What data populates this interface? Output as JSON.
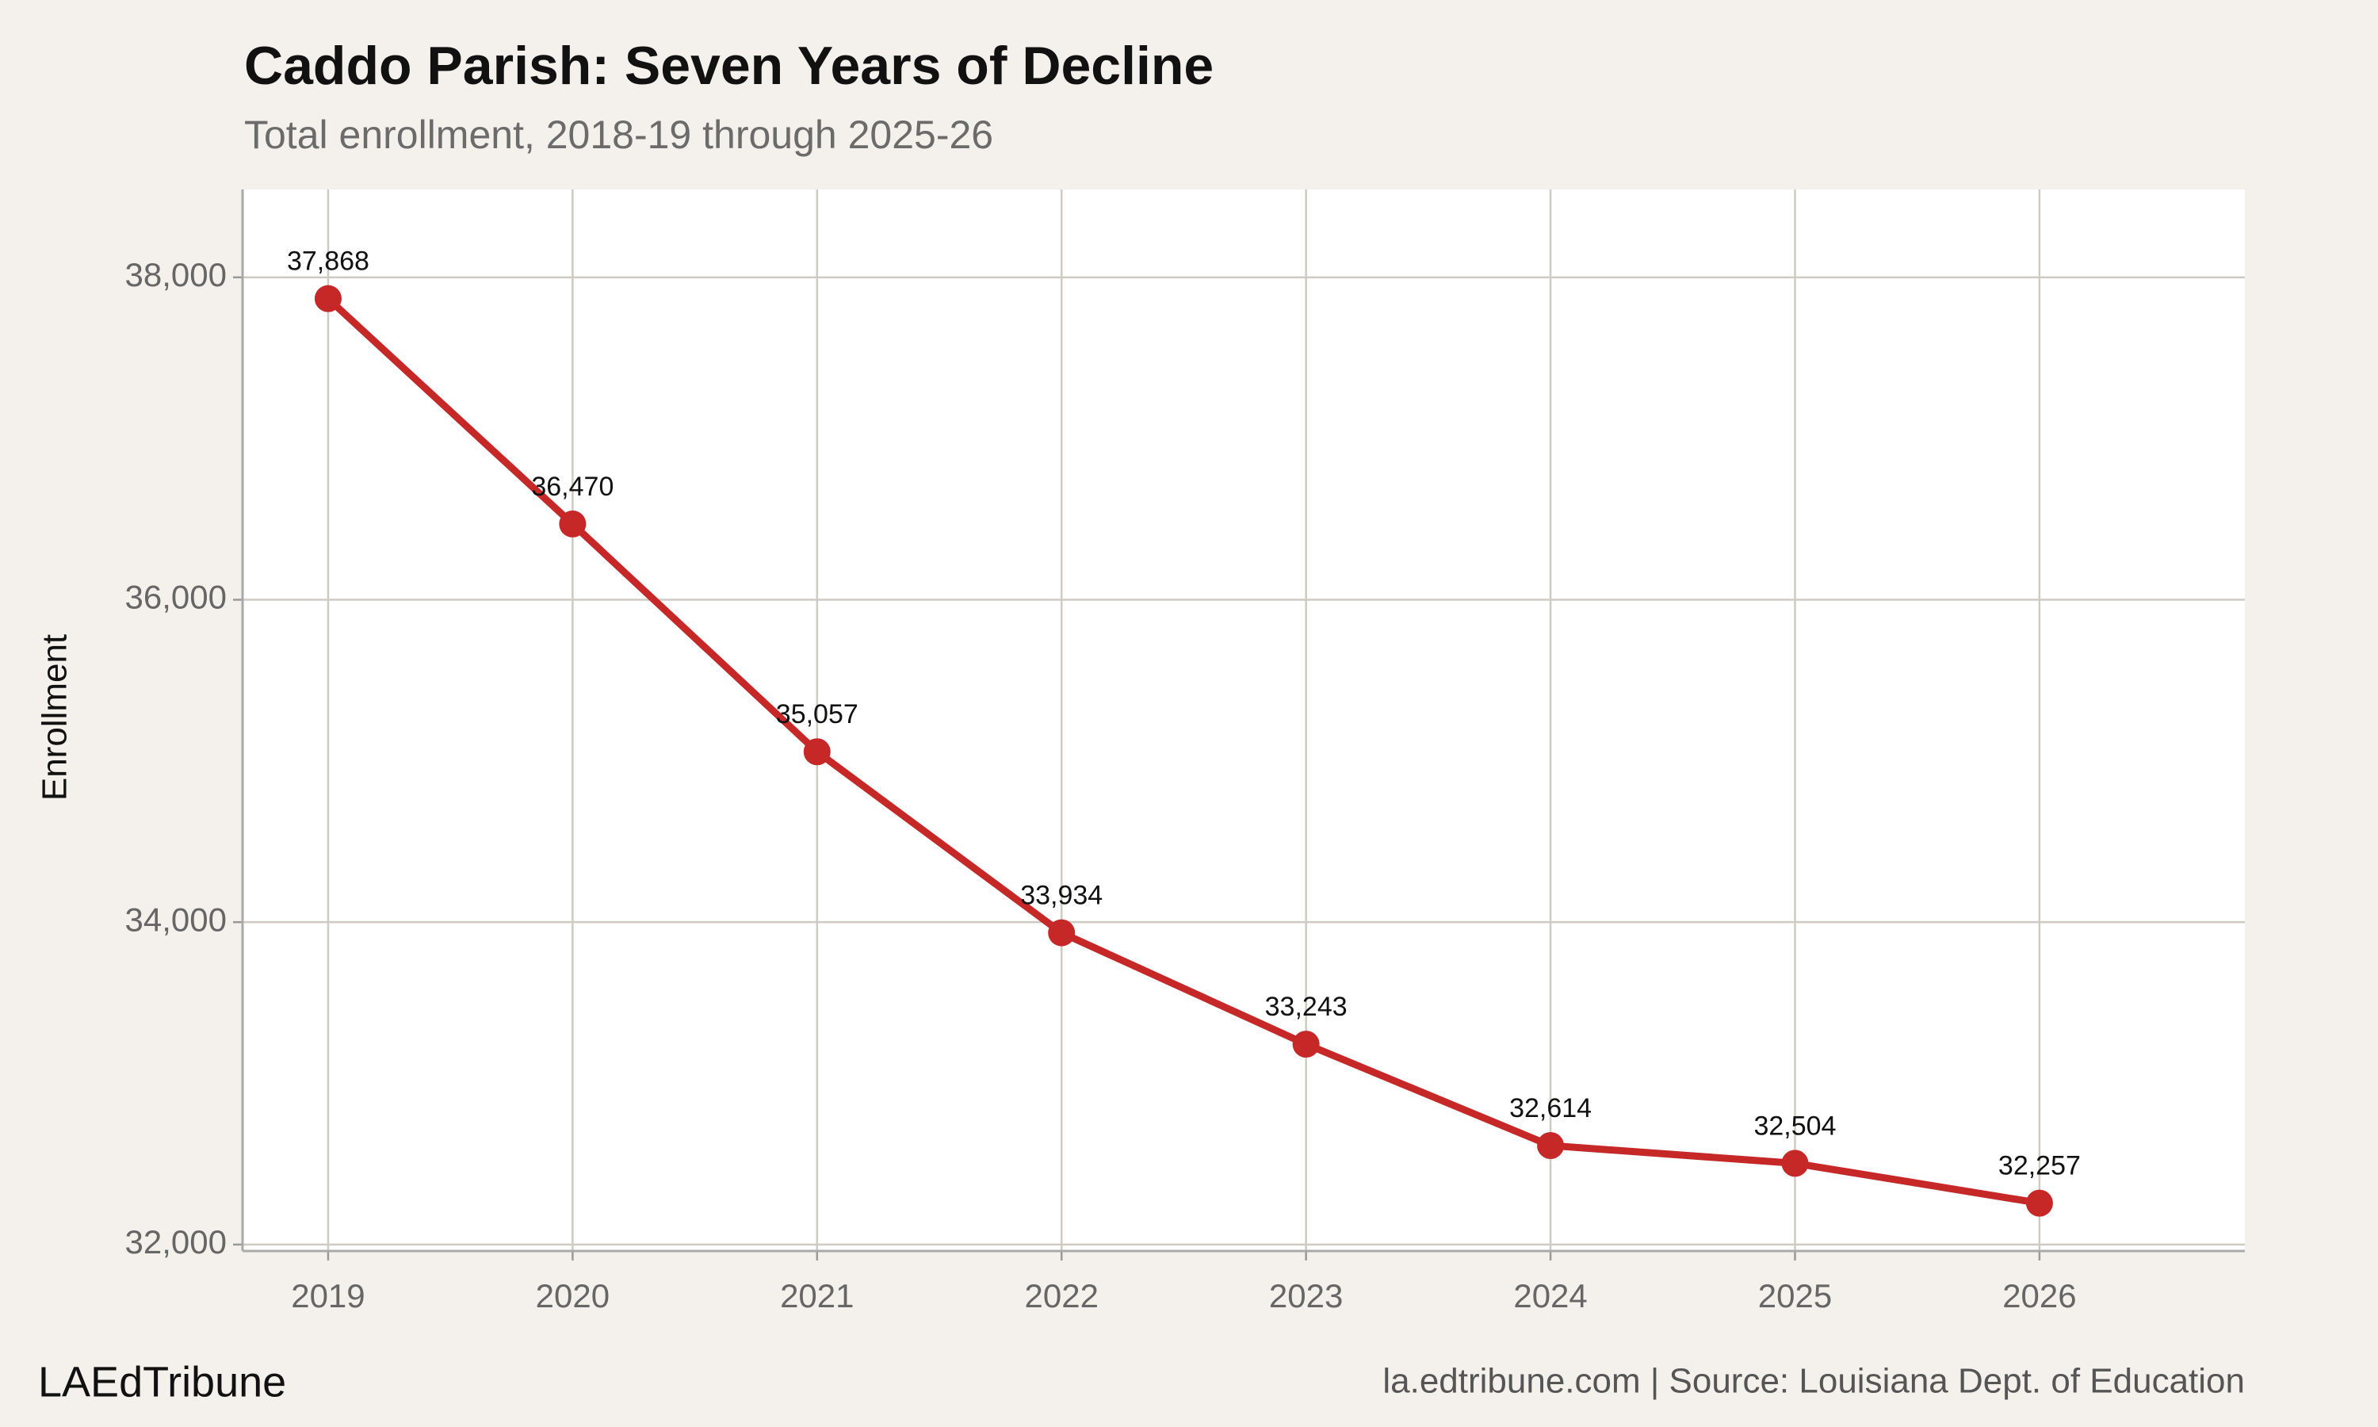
{
  "chart_data": {
    "type": "line",
    "title": "Caddo Parish: Seven Years of Decline",
    "subtitle": "Total enrollment, 2018-19 through 2025-26",
    "y_label": "Enrollment",
    "brand": "LAEdTribune",
    "source": "la.edtribune.com | Source: Louisiana Dept. of Education",
    "x": [
      2019,
      2020,
      2021,
      2022,
      2023,
      2024,
      2025,
      2026
    ],
    "series": [
      {
        "name": "Enrollment",
        "color": "#c62828",
        "values": [
          37868,
          36470,
          35057,
          33934,
          33243,
          32614,
          32504,
          32257
        ],
        "value_labels": [
          "37,868",
          "36,470",
          "35,057",
          "33,934",
          "33,243",
          "32,614",
          "32,504",
          "32,257"
        ]
      }
    ],
    "xlim": [
      2018.65,
      2026.84
    ],
    "xticks": [
      2019,
      2020,
      2021,
      2022,
      2023,
      2024,
      2025,
      2026
    ],
    "ylim": [
      31960,
      38545
    ],
    "yticks": [
      {
        "value": 32000,
        "label": "32,000"
      },
      {
        "value": 34000,
        "label": "34,000"
      },
      {
        "value": 36000,
        "label": "36,000"
      },
      {
        "value": 38000,
        "label": "38,000"
      }
    ],
    "grid": true
  }
}
